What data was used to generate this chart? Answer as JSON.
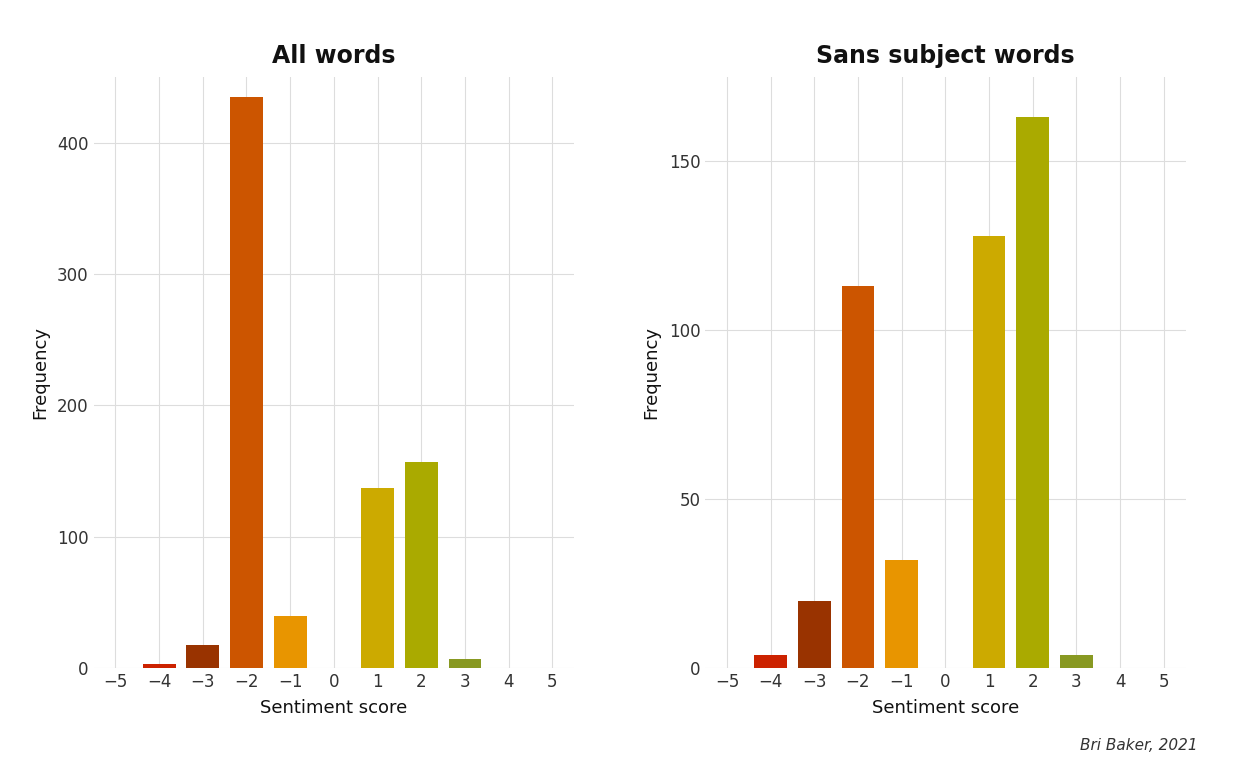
{
  "left_title": "All words",
  "right_title": "Sans subject words",
  "xlabel": "Sentiment score",
  "ylabel": "Frequency",
  "credit": "Bri Baker, 2021",
  "left_scores": [
    -4,
    -3,
    -2,
    -1,
    1,
    2,
    3
  ],
  "left_values": [
    3,
    18,
    435,
    40,
    137,
    157,
    7
  ],
  "left_colors": [
    "#cc2200",
    "#993300",
    "#cc5500",
    "#e89500",
    "#ccaa00",
    "#aaaa00",
    "#889922"
  ],
  "right_scores": [
    -4,
    -3,
    -2,
    -1,
    1,
    2,
    3
  ],
  "right_values": [
    4,
    20,
    113,
    32,
    128,
    163,
    4
  ],
  "right_colors": [
    "#cc2200",
    "#993300",
    "#cc5500",
    "#e89500",
    "#ccaa00",
    "#aaaa00",
    "#889922"
  ],
  "left_ylim": [
    0,
    450
  ],
  "left_yticks": [
    0,
    100,
    200,
    300,
    400
  ],
  "right_ylim": [
    0,
    175
  ],
  "right_yticks": [
    0,
    50,
    100,
    150
  ],
  "xlim": [
    -5.5,
    5.5
  ],
  "xticks": [
    -5,
    -4,
    -3,
    -2,
    -1,
    0,
    1,
    2,
    3,
    4,
    5
  ],
  "background_color": "#ffffff",
  "grid_color": "#dddddd",
  "title_fontsize": 17,
  "label_fontsize": 13,
  "tick_fontsize": 12,
  "bar_width": 0.75
}
